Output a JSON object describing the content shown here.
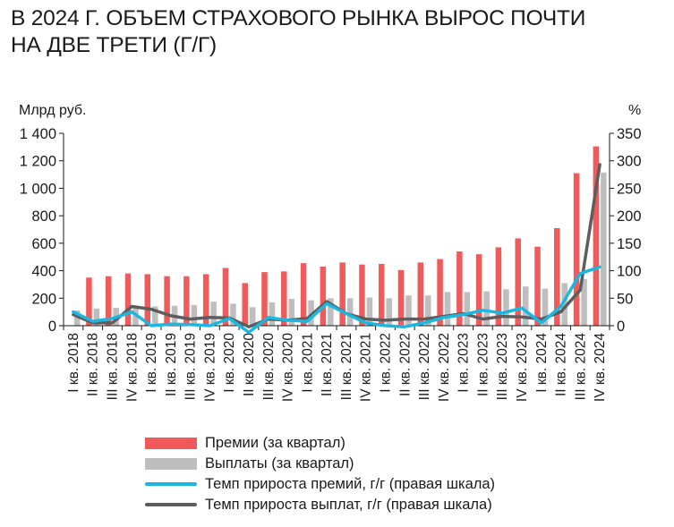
{
  "title": {
    "line1": "В 2024 Г. ОБЪЕМ СТРАХОВОГО РЫНКА ВЫРОС ПОЧТИ",
    "line2": "НА ДВЕ ТРЕТИ (Г/Г)"
  },
  "colors": {
    "premiums": "#f05a5b",
    "payouts": "#bebebe",
    "premium_growth": "#1ab7e0",
    "payout_growth": "#5d5d5d",
    "axis": "#1a1a1a"
  },
  "chart_data": {
    "type": "bar",
    "ylabel": "Млрд руб.",
    "y2label": "%",
    "ylim": [
      0,
      1400
    ],
    "y2lim": [
      0,
      350
    ],
    "yticks": [
      "0",
      "200",
      "400",
      "600",
      "800",
      "1 000",
      "1 200",
      "1 400"
    ],
    "y2ticks": [
      "0",
      "50",
      "100",
      "150",
      "200",
      "250",
      "300",
      "350"
    ],
    "grid": false,
    "legend_position": "bottom",
    "categories": [
      "I кв. 2018",
      "II кв. 2018",
      "III кв. 2018",
      "IV кв. 2018",
      "I кв. 2019",
      "II кв. 2019",
      "III кв. 2019",
      "IV кв. 2019",
      "I кв. 2020",
      "II кв. 2020",
      "III кв. 2020",
      "IV кв. 2020",
      "I кв. 2021",
      "II кв. 2021",
      "III кв. 2021",
      "IV кв. 2021",
      "I кв. 2022",
      "II кв. 2022",
      "III кв. 2022",
      "IV кв. 2022",
      "I кв. 2023",
      "II кв. 2023",
      "III кв. 2023",
      "IV кв. 2023",
      "I кв. 2024",
      "II кв. 2024",
      "III кв. 2024",
      "IV кв. 2024"
    ],
    "series": [
      {
        "name": "Премии (за квартал)",
        "type": "bar",
        "axis": "left",
        "values": [
          0,
          350,
          360,
          380,
          375,
          360,
          360,
          375,
          420,
          310,
          390,
          395,
          455,
          430,
          460,
          445,
          450,
          405,
          460,
          485,
          540,
          520,
          570,
          635,
          575,
          710,
          1110,
          1305
        ]
      },
      {
        "name": "Выплаты (за квартал)",
        "type": "bar",
        "axis": "left",
        "values": [
          110,
          125,
          130,
          140,
          140,
          145,
          150,
          175,
          160,
          135,
          170,
          195,
          185,
          200,
          200,
          205,
          200,
          220,
          220,
          245,
          245,
          250,
          265,
          285,
          270,
          310,
          340,
          1115
        ]
      },
      {
        "name": "Темп прироста премий, г/г (правая шкала)",
        "type": "line",
        "axis": "right",
        "values": [
          25,
          8,
          13,
          25,
          0,
          3,
          2,
          0,
          13,
          -12,
          15,
          10,
          8,
          40,
          22,
          5,
          0,
          -2,
          5,
          15,
          20,
          28,
          23,
          32,
          5,
          35,
          95,
          107
        ]
      },
      {
        "name": "Темп прироста выплат, г/г (правая шкала)",
        "type": "line",
        "axis": "right",
        "values": [
          20,
          5,
          5,
          35,
          30,
          18,
          12,
          15,
          14,
          -2,
          12,
          10,
          13,
          44,
          22,
          12,
          10,
          12,
          12,
          17,
          22,
          12,
          17,
          16,
          12,
          25,
          65,
          293
        ]
      }
    ]
  },
  "legend": [
    {
      "label": "Премии (за квартал)",
      "kind": "bar",
      "color": "#f05a5b"
    },
    {
      "label": "Выплаты (за квартал)",
      "kind": "bar",
      "color": "#bebebe"
    },
    {
      "label": "Темп прироста премий, г/г (правая шкала)",
      "kind": "line",
      "color": "#1ab7e0"
    },
    {
      "label": "Темп прироста выплат, г/г (правая шкала)",
      "kind": "line",
      "color": "#5d5d5d"
    }
  ]
}
